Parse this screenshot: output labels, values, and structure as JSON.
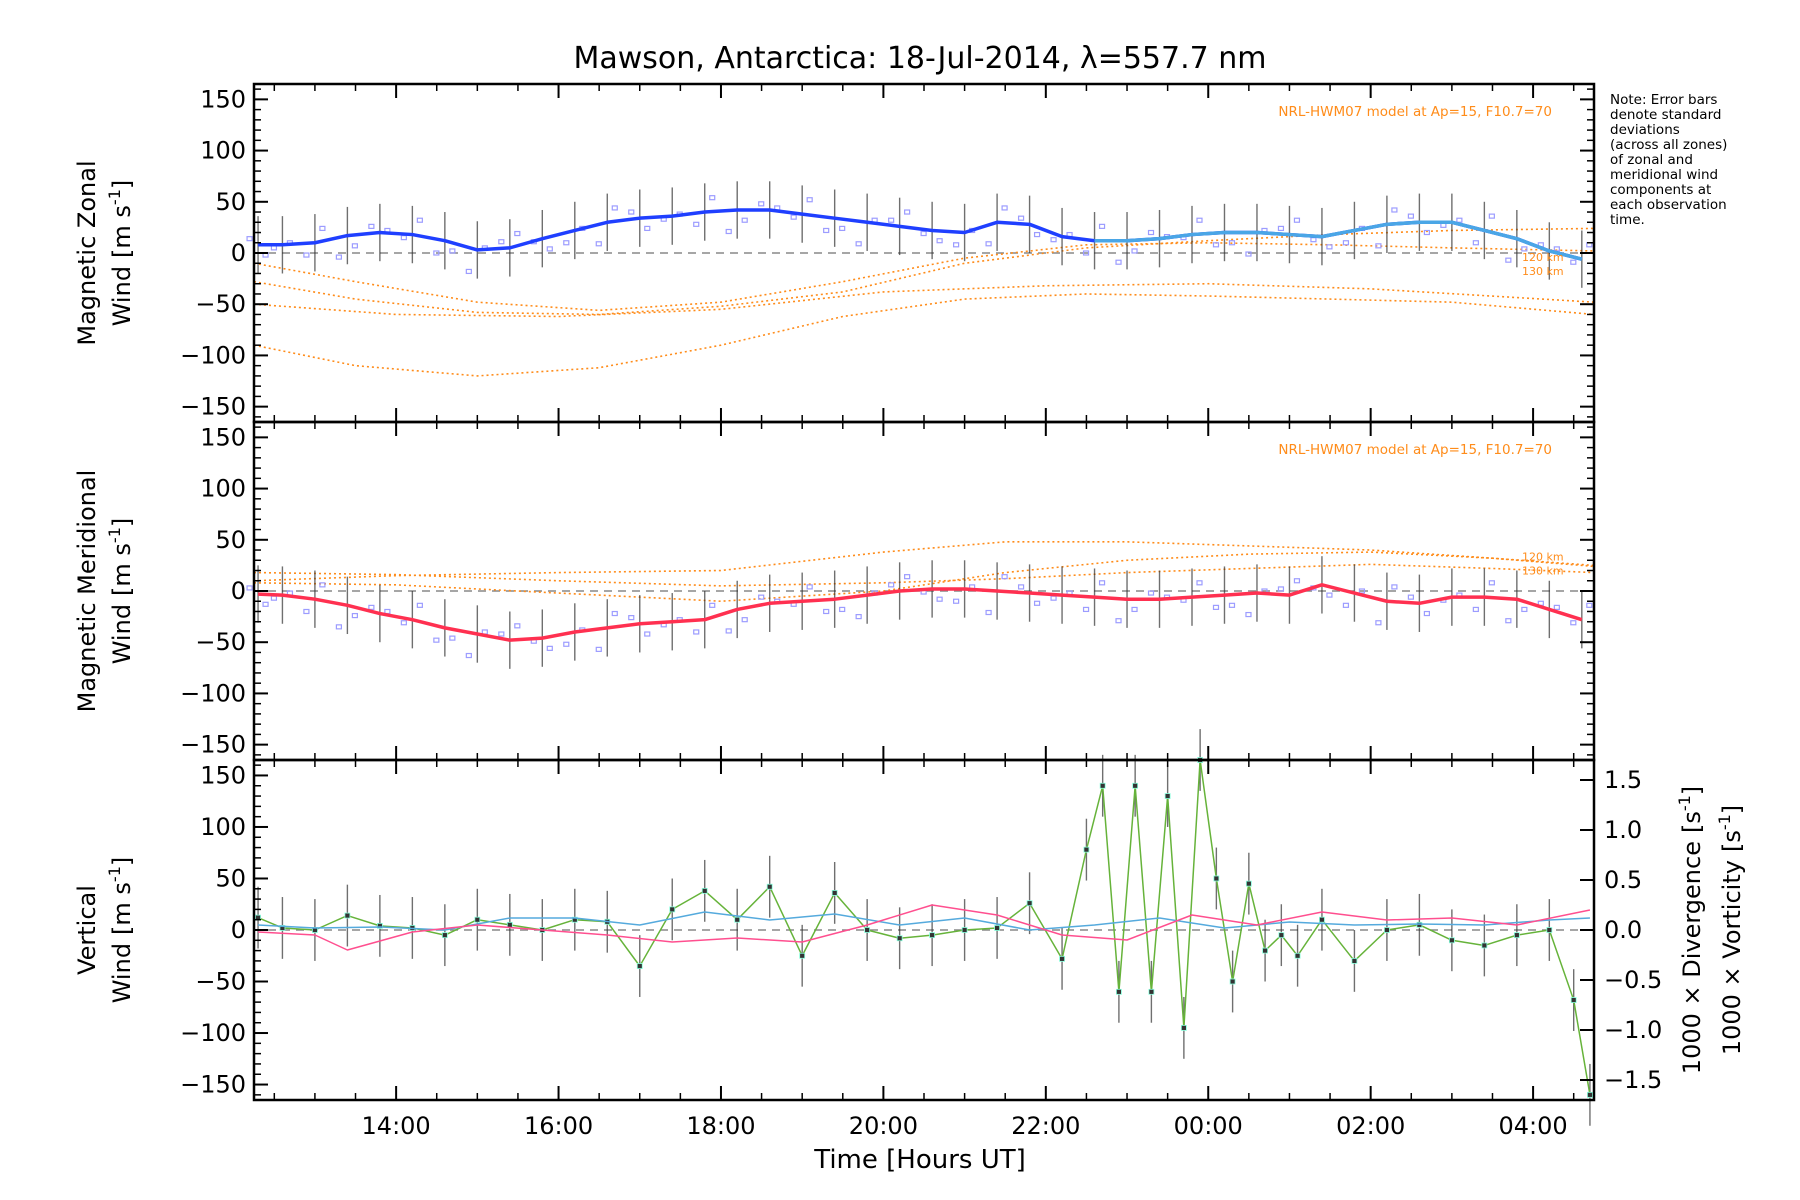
{
  "title": "Mawson, Antarctica: 18-Jul-2014, λ=557.7 nm",
  "xlabel": "Time [Hours UT]",
  "note": [
    "Note: Error bars",
    "denote standard",
    "deviations",
    "(across all zones)",
    "of zonal and",
    "meridional wind",
    "components at",
    "each observation",
    "time."
  ],
  "colors": {
    "zonal": "#1f3fff",
    "zonal_light": "#4aa6e6",
    "meridional": "#ff3050",
    "vertical": "#66b33a",
    "divergence": "#55aadd",
    "vorticity": "#ff4f8f",
    "model": "#ff8c1a",
    "scatter": "#9c9cff"
  },
  "chart_data": [
    {
      "type": "line",
      "panel": "zonal",
      "ylabel_line1": "Magnetic Zonal",
      "ylabel_line2": "Wind",
      "ylabel_unit": "[m s",
      "ylabel_sup": "-1",
      "ylabel_close": "]",
      "ylim": [
        -165,
        165
      ],
      "yticks": [
        "150",
        "100",
        "50",
        "0",
        "−50",
        "−100",
        "−150"
      ],
      "ytick_values": [
        150,
        100,
        50,
        0,
        -50,
        -100,
        -150
      ],
      "xlim": [
        12.25,
        28.75
      ],
      "model_label": "NRL-HWM07 model at Ap=15, F10.7=70",
      "model_alt_labels": [
        "120 km",
        "130 km"
      ],
      "series": [
        {
          "x": [
            12.3,
            12.6,
            13.0,
            13.4,
            13.8,
            14.2,
            14.6,
            15.0,
            15.4,
            15.8,
            16.2,
            16.6,
            17.0,
            17.4,
            17.8,
            18.2,
            18.6,
            19.0,
            19.4,
            19.8,
            20.2,
            20.6,
            21.0,
            21.4,
            21.8,
            22.2,
            22.6,
            23.0,
            23.4,
            23.8,
            24.2,
            24.6,
            25.0,
            25.4,
            25.8,
            26.2,
            26.6,
            27.0,
            27.4,
            27.8,
            28.2,
            28.6
          ],
          "y": [
            8,
            8,
            10,
            17,
            20,
            18,
            12,
            3,
            5,
            14,
            22,
            30,
            34,
            36,
            40,
            42,
            42,
            38,
            34,
            30,
            26,
            22,
            20,
            30,
            28,
            16,
            12,
            12,
            14,
            18,
            20,
            20,
            18,
            16,
            22,
            28,
            30,
            30,
            22,
            14,
            2,
            -6
          ]
        }
      ],
      "model_lines": [
        {
          "x": [
            12.25,
            13.5,
            15,
            16.5,
            18,
            19.5,
            21,
            22.5,
            24,
            25.5,
            27,
            28.75
          ],
          "y": [
            -28,
            -45,
            -58,
            -60,
            -52,
            -38,
            -10,
            5,
            12,
            18,
            22,
            24
          ]
        },
        {
          "x": [
            12.25,
            13.5,
            15,
            16.5,
            18,
            19.5,
            21,
            22.5,
            24,
            25.5,
            27,
            28.75
          ],
          "y": [
            -10,
            -28,
            -48,
            -56,
            -48,
            -28,
            -5,
            8,
            10,
            8,
            5,
            2
          ]
        },
        {
          "x": [
            12.25,
            13.5,
            15,
            16.5,
            18,
            19.5,
            21,
            22.5,
            24,
            25.5,
            27,
            28.75
          ],
          "y": [
            -90,
            -110,
            -120,
            -112,
            -90,
            -62,
            -45,
            -40,
            -42,
            -45,
            -48,
            -60
          ]
        },
        {
          "x": [
            12.25,
            14,
            16,
            18,
            20,
            22,
            24,
            26,
            28.75
          ],
          "y": [
            -50,
            -60,
            -62,
            -55,
            -38,
            -32,
            -30,
            -35,
            -48
          ]
        }
      ]
    },
    {
      "type": "line",
      "panel": "meridional",
      "ylabel_line1": "Magnetic Meridional",
      "ylabel_line2": "Wind",
      "ylabel_unit": "[m s",
      "ylabel_sup": "-1",
      "ylabel_close": "]",
      "ylim": [
        -165,
        165
      ],
      "yticks": [
        "150",
        "100",
        "50",
        "0",
        "−50",
        "−100",
        "−150"
      ],
      "ytick_values": [
        150,
        100,
        50,
        0,
        -50,
        -100,
        -150
      ],
      "xlim": [
        12.25,
        28.75
      ],
      "model_label": "NRL-HWM07 model at Ap=15, F10.7=70",
      "model_alt_labels": [
        "120 km",
        "130 km"
      ],
      "series": [
        {
          "x": [
            12.3,
            12.6,
            13.0,
            13.4,
            13.8,
            14.2,
            14.6,
            15.0,
            15.4,
            15.8,
            16.2,
            16.6,
            17.0,
            17.4,
            17.8,
            18.2,
            18.6,
            19.0,
            19.4,
            19.8,
            20.2,
            20.6,
            21.0,
            21.4,
            21.8,
            22.2,
            22.6,
            23.0,
            23.4,
            23.8,
            24.2,
            24.6,
            25.0,
            25.4,
            25.8,
            26.2,
            26.6,
            27.0,
            27.4,
            27.8,
            28.2,
            28.6
          ],
          "y": [
            -3,
            -4,
            -8,
            -14,
            -22,
            -28,
            -36,
            -42,
            -48,
            -46,
            -40,
            -36,
            -32,
            -30,
            -28,
            -18,
            -12,
            -10,
            -8,
            -4,
            0,
            2,
            2,
            0,
            -2,
            -4,
            -6,
            -8,
            -8,
            -6,
            -4,
            -2,
            -4,
            6,
            -2,
            -10,
            -12,
            -6,
            -6,
            -8,
            -18,
            -28
          ]
        }
      ],
      "model_lines": [
        {
          "x": [
            12.25,
            14,
            16,
            18,
            20,
            21.5,
            23,
            24.5,
            26,
            27.5,
            28.75
          ],
          "y": [
            10,
            15,
            18,
            20,
            38,
            48,
            48,
            44,
            40,
            32,
            25
          ]
        },
        {
          "x": [
            12.25,
            14,
            16,
            18,
            20,
            21.5,
            23,
            24.5,
            26,
            27.5,
            28.75
          ],
          "y": [
            8,
            6,
            -2,
            -10,
            0,
            18,
            30,
            36,
            38,
            32,
            24
          ]
        },
        {
          "x": [
            12.25,
            14,
            16,
            18,
            20,
            21.5,
            23,
            24.5,
            26,
            27.5,
            28.75
          ],
          "y": [
            18,
            16,
            10,
            5,
            8,
            12,
            18,
            22,
            26,
            22,
            18
          ]
        }
      ]
    },
    {
      "type": "line",
      "panel": "vertical",
      "ylabel_line1": "Vertical",
      "ylabel_line2": "Wind",
      "ylabel_unit": "[m s",
      "ylabel_sup": "-1",
      "ylabel_close": "]",
      "ylim": [
        -165,
        165
      ],
      "yticks": [
        "150",
        "100",
        "50",
        "0",
        "−50",
        "−100",
        "−150"
      ],
      "ytick_values": [
        150,
        100,
        50,
        0,
        -50,
        -100,
        -150
      ],
      "xlim": [
        12.25,
        28.75
      ],
      "xticks": [
        "14:00",
        "16:00",
        "18:00",
        "20:00",
        "22:00",
        "00:00",
        "02:00",
        "04:00"
      ],
      "xtick_values": [
        14,
        16,
        18,
        20,
        22,
        24,
        26,
        28
      ],
      "y2ticks": [
        "1.5",
        "1.0",
        "0.5",
        "0.0",
        "−0.5",
        "−1.0",
        "−1.5"
      ],
      "y2tick_values": [
        1.5,
        1.0,
        0.5,
        0.0,
        -0.5,
        -1.0,
        -1.5
      ],
      "y2label_div": "1000 × Divergence",
      "y2label_vor": "1000 × Vorticity",
      "y2label_unit": "[s",
      "y2label_sup": "-1",
      "y2label_close": "]",
      "series": [
        {
          "name": "vertical",
          "x": [
            12.3,
            12.6,
            13.0,
            13.4,
            13.8,
            14.2,
            14.6,
            15.0,
            15.4,
            15.8,
            16.2,
            16.6,
            17.0,
            17.4,
            17.8,
            18.2,
            18.6,
            19.0,
            19.4,
            19.8,
            20.2,
            20.6,
            21.0,
            21.4,
            21.8,
            22.2,
            22.5,
            22.7,
            22.9,
            23.1,
            23.3,
            23.5,
            23.7,
            23.9,
            24.1,
            24.3,
            24.5,
            24.7,
            24.9,
            25.1,
            25.4,
            25.8,
            26.2,
            26.6,
            27.0,
            27.4,
            27.8,
            28.2,
            28.5,
            28.7
          ],
          "y": [
            12,
            2,
            0,
            14,
            4,
            2,
            -5,
            10,
            5,
            0,
            10,
            8,
            -35,
            20,
            38,
            10,
            42,
            -25,
            36,
            0,
            -8,
            -5,
            0,
            2,
            26,
            -28,
            78,
            140,
            -60,
            140,
            -60,
            130,
            -95,
            165,
            50,
            -50,
            45,
            -20,
            -5,
            -25,
            10,
            -30,
            0,
            5,
            -10,
            -15,
            -5,
            0,
            -68,
            -160
          ]
        },
        {
          "name": "divergence",
          "x": [
            12.3,
            13.0,
            13.8,
            14.6,
            15.4,
            16.2,
            17.0,
            17.8,
            18.6,
            19.4,
            20.2,
            21.0,
            21.8,
            22.6,
            23.4,
            24.2,
            25.0,
            25.8,
            26.6,
            27.4,
            28.2,
            28.7
          ],
          "y": [
            0.05,
            0.02,
            0.03,
            0.0,
            0.12,
            0.12,
            0.05,
            0.18,
            0.1,
            0.16,
            0.05,
            0.12,
            0.0,
            0.05,
            0.12,
            0.02,
            0.08,
            0.05,
            0.06,
            0.05,
            0.1,
            0.12
          ]
        },
        {
          "name": "vorticity",
          "x": [
            12.3,
            13.0,
            13.4,
            14.2,
            15.0,
            15.8,
            16.6,
            17.4,
            18.2,
            19.0,
            19.8,
            20.6,
            21.4,
            22.2,
            23.0,
            23.8,
            24.6,
            25.4,
            26.2,
            27.0,
            27.8,
            28.7
          ],
          "y": [
            -0.02,
            -0.05,
            -0.2,
            -0.02,
            0.05,
            0.0,
            -0.05,
            -0.12,
            -0.08,
            -0.12,
            0.05,
            0.25,
            0.15,
            -0.05,
            -0.1,
            0.15,
            0.05,
            0.18,
            0.1,
            0.12,
            0.05,
            0.2
          ]
        }
      ]
    }
  ]
}
